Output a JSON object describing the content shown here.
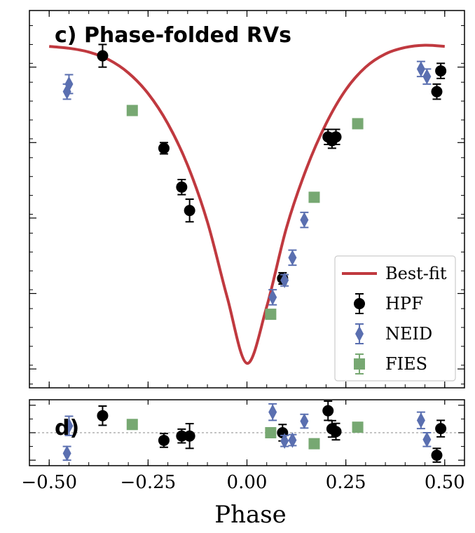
{
  "chart_data": [
    {
      "type": "scatter",
      "panel_label": "c) Phase-folded RVs",
      "xlim": [
        -0.55,
        0.55
      ],
      "ylim": [
        0.0,
        1.0
      ],
      "grid": false,
      "legend_position": "bottom-right",
      "legend": [
        {
          "label": "Best-fit",
          "kind": "line",
          "color": "#c0393f"
        },
        {
          "label": "HPF",
          "kind": "circle",
          "color": "#000000"
        },
        {
          "label": "NEID",
          "kind": "diamond",
          "color": "#5a6fb0"
        },
        {
          "label": "FIES",
          "kind": "square",
          "color": "#77a872"
        }
      ],
      "series": [
        {
          "name": "Best-fit",
          "color": "#c0393f",
          "kind": "line",
          "x": [
            -0.5,
            -0.45,
            -0.4,
            -0.35,
            -0.3,
            -0.25,
            -0.2,
            -0.15,
            -0.1,
            -0.05,
            0.0,
            0.05,
            0.1,
            0.15,
            0.2,
            0.25,
            0.3,
            0.35,
            0.4,
            0.45,
            0.5
          ],
          "y": [
            0.905,
            0.9,
            0.89,
            0.87,
            0.835,
            0.78,
            0.7,
            0.59,
            0.44,
            0.24,
            0.065,
            0.215,
            0.425,
            0.58,
            0.7,
            0.79,
            0.85,
            0.885,
            0.902,
            0.908,
            0.905
          ]
        },
        {
          "name": "HPF",
          "color": "#000000",
          "kind": "circle",
          "x": [
            -0.365,
            -0.21,
            -0.165,
            -0.145,
            0.09,
            0.205,
            0.215,
            0.225,
            0.48,
            0.49
          ],
          "y": [
            0.88,
            0.635,
            0.532,
            0.47,
            0.29,
            0.665,
            0.655,
            0.665,
            0.785,
            0.84
          ],
          "err": [
            0.03,
            0.015,
            0.02,
            0.03,
            0.015,
            0.02,
            0.02,
            0.02,
            0.02,
            0.02
          ]
        },
        {
          "name": "NEID",
          "color": "#5a6fb0",
          "kind": "diamond",
          "x": [
            -0.455,
            -0.45,
            0.065,
            0.095,
            0.115,
            0.145,
            0.44,
            0.455
          ],
          "y": [
            0.785,
            0.805,
            0.24,
            0.285,
            0.345,
            0.445,
            0.845,
            0.825
          ],
          "err": [
            0.02,
            0.025,
            0.02,
            0.015,
            0.02,
            0.02,
            0.02,
            0.02
          ]
        },
        {
          "name": "FIES",
          "color": "#77a872",
          "kind": "square",
          "x": [
            -0.29,
            0.06,
            0.17,
            0.28
          ],
          "y": [
            0.735,
            0.195,
            0.505,
            0.7
          ],
          "err": [
            0.01,
            0.01,
            0.01,
            0.01
          ]
        }
      ]
    },
    {
      "type": "scatter",
      "panel_label": "d)",
      "xlim": [
        -0.55,
        0.55
      ],
      "ylim": [
        -1.2,
        1.2
      ],
      "xlabel": "Phase",
      "x_ticks": [
        -0.5,
        -0.25,
        0.0,
        0.25,
        0.5
      ],
      "x_tick_labels": [
        "−0.50",
        "−0.25",
        "0.00",
        "0.25",
        "0.50"
      ],
      "zero_line": true,
      "grid": false,
      "series": [
        {
          "name": "HPF",
          "color": "#000000",
          "kind": "circle",
          "x": [
            -0.365,
            -0.21,
            -0.165,
            -0.145,
            0.09,
            0.205,
            0.215,
            0.225,
            0.48,
            0.49
          ],
          "y": [
            0.62,
            -0.28,
            -0.12,
            -0.12,
            0.0,
            0.8,
            0.14,
            0.04,
            -0.82,
            0.15
          ],
          "err": [
            0.35,
            0.25,
            0.25,
            0.45,
            0.3,
            0.35,
            0.3,
            0.3,
            0.25,
            0.3
          ]
        },
        {
          "name": "NEID",
          "color": "#5a6fb0",
          "kind": "diamond",
          "x": [
            -0.455,
            -0.45,
            0.065,
            0.095,
            0.115,
            0.145,
            0.44,
            0.455
          ],
          "y": [
            -0.75,
            0.25,
            0.75,
            -0.3,
            -0.27,
            0.42,
            0.45,
            -0.25
          ],
          "err": [
            0.25,
            0.35,
            0.3,
            0.2,
            0.2,
            0.25,
            0.3,
            0.25
          ]
        },
        {
          "name": "FIES",
          "color": "#77a872",
          "kind": "square",
          "x": [
            -0.29,
            0.06,
            0.17,
            0.28
          ],
          "y": [
            0.3,
            0.0,
            -0.4,
            0.2
          ],
          "err": [
            0.08,
            0.08,
            0.08,
            0.08
          ]
        }
      ]
    }
  ]
}
